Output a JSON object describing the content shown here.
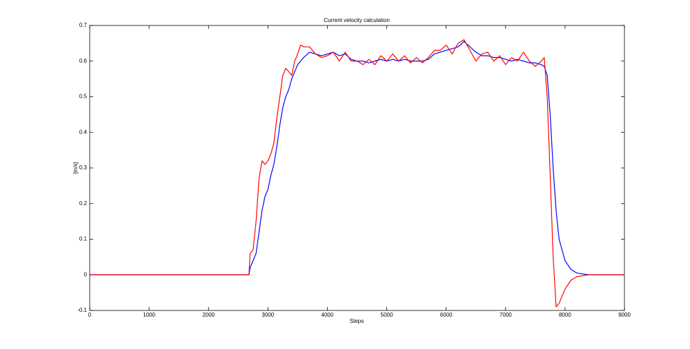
{
  "chart_data": {
    "type": "line",
    "title": "Current velocity calculation",
    "xlabel": "Steps",
    "ylabel": "[m/s]",
    "x": [
      0,
      2680,
      2700,
      2750,
      2800,
      2850,
      2900,
      2950,
      3000,
      3050,
      3100,
      3150,
      3200,
      3250,
      3300,
      3350,
      3400,
      3450,
      3500,
      3550,
      3600,
      3700,
      3800,
      3900,
      4000,
      4100,
      4200,
      4300,
      4400,
      4500,
      4600,
      4700,
      4800,
      4900,
      5000,
      5100,
      5200,
      5300,
      5400,
      5500,
      5600,
      5700,
      5800,
      5900,
      6000,
      6100,
      6200,
      6300,
      6400,
      6500,
      6600,
      6700,
      6800,
      6900,
      7000,
      7100,
      7200,
      7300,
      7400,
      7500,
      7600,
      7650,
      7700,
      7750,
      7800,
      7850,
      7900,
      8000,
      8100,
      8200,
      8400,
      9000
    ],
    "series": [
      {
        "color": "#0000ff",
        "values": [
          0,
          0,
          0.02,
          0.04,
          0.06,
          0.12,
          0.18,
          0.22,
          0.24,
          0.28,
          0.31,
          0.36,
          0.42,
          0.47,
          0.5,
          0.52,
          0.55,
          0.57,
          0.59,
          0.6,
          0.61,
          0.625,
          0.62,
          0.615,
          0.62,
          0.625,
          0.615,
          0.62,
          0.605,
          0.6,
          0.6,
          0.595,
          0.6,
          0.605,
          0.6,
          0.605,
          0.6,
          0.605,
          0.6,
          0.6,
          0.6,
          0.605,
          0.62,
          0.625,
          0.63,
          0.635,
          0.64,
          0.655,
          0.64,
          0.625,
          0.615,
          0.615,
          0.61,
          0.61,
          0.605,
          0.6,
          0.605,
          0.6,
          0.595,
          0.595,
          0.59,
          0.585,
          0.56,
          0.45,
          0.3,
          0.18,
          0.1,
          0.04,
          0.015,
          0.005,
          0,
          0
        ]
      },
      {
        "color": "#ff0000",
        "values": [
          0,
          0,
          0.06,
          0.07,
          0.15,
          0.27,
          0.32,
          0.31,
          0.32,
          0.34,
          0.37,
          0.44,
          0.5,
          0.56,
          0.58,
          0.57,
          0.56,
          0.6,
          0.62,
          0.645,
          0.64,
          0.64,
          0.62,
          0.61,
          0.615,
          0.625,
          0.6,
          0.625,
          0.6,
          0.6,
          0.59,
          0.605,
          0.59,
          0.615,
          0.6,
          0.62,
          0.6,
          0.615,
          0.595,
          0.61,
          0.595,
          0.61,
          0.63,
          0.63,
          0.645,
          0.62,
          0.65,
          0.66,
          0.63,
          0.6,
          0.62,
          0.625,
          0.6,
          0.615,
          0.59,
          0.61,
          0.6,
          0.625,
          0.6,
          0.585,
          0.6,
          0.61,
          0.5,
          0.28,
          0.05,
          -0.09,
          -0.08,
          -0.04,
          -0.015,
          -0.005,
          0,
          0
        ]
      }
    ],
    "xlim": [
      0,
      9000
    ],
    "xticks": [
      0,
      1000,
      2000,
      3000,
      4000,
      5000,
      6000,
      7000,
      8000,
      9000
    ],
    "ylim": [
      -0.1,
      0.7
    ],
    "yticks": [
      -0.1,
      0,
      0.1,
      0.2,
      0.3,
      0.4,
      0.5,
      0.6,
      0.7
    ],
    "grid": false
  }
}
